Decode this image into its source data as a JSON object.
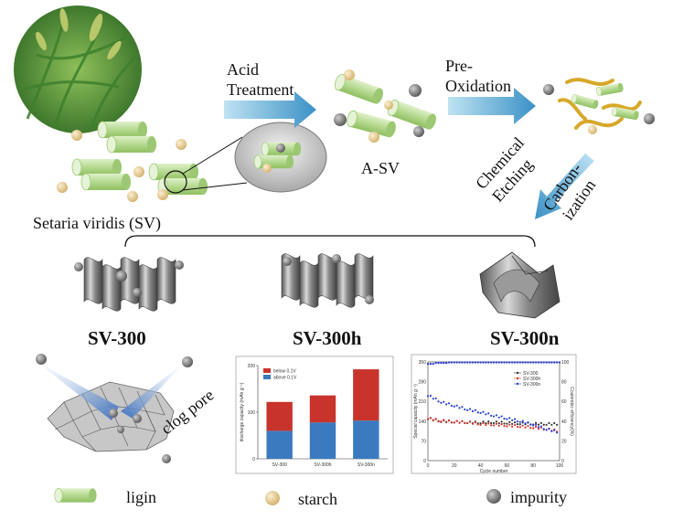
{
  "labels": {
    "acid_treatment_1": "Acid",
    "acid_treatment_2": "Treatment",
    "pre_oxidation_1": "Pre-",
    "pre_oxidation_2": "Oxidation",
    "a_sv": "A-SV",
    "chemical": "Chemical",
    "etching": "Etching",
    "carbon": "Carbon-",
    "ization": "ization",
    "setaria": "Setaria viridis (SV)",
    "sv300": "SV-300",
    "sv300h": "SV-300h",
    "sv300n": "SV-300n",
    "clog_pore": "clog pore"
  },
  "legend": {
    "ligin": "ligin",
    "starch": "starch",
    "impurity": "impurity"
  },
  "colors": {
    "ligin": "#b5d98f",
    "starch": "#e8cf95",
    "impurity": "#7a7a7a",
    "arrow": "#5aaed6",
    "bar_below": "#c8342b",
    "bar_above": "#3a7abf"
  },
  "chart_data": [
    {
      "type": "bar",
      "stacked": true,
      "categories": [
        "SV-300",
        "SV-300h",
        "SV-300n"
      ],
      "series": [
        {
          "name": "above 0.1V",
          "values": [
            60,
            78,
            82
          ]
        },
        {
          "name": "below 0.1V",
          "values": [
            62,
            58,
            110
          ]
        }
      ],
      "ylabel": "discharge capacity (mAh g⁻¹)",
      "ylim": [
        0,
        200
      ],
      "yticks": [
        "0",
        "100",
        "200"
      ],
      "legend_position": "top-left"
    },
    {
      "type": "scatter",
      "xlabel": "Cycle number",
      "ylabel": "Special capacity (mAh g⁻¹)",
      "y2label": "Coulombic efficiency(%)",
      "xlim": [
        0,
        100
      ],
      "ylim": [
        0,
        350
      ],
      "y2lim": [
        0,
        100
      ],
      "xticks": [
        "0",
        "20",
        "40",
        "60",
        "80",
        "100"
      ],
      "yticks": [
        "0",
        "70",
        "140",
        "210",
        "280",
        "350"
      ],
      "y2ticks": [
        "0",
        "20",
        "40",
        "60",
        "80",
        "100"
      ],
      "legend": [
        "SV-300",
        "SV-300h",
        "SV-300n"
      ],
      "legend_position": "top-right",
      "series": [
        {
          "name": "SV-300",
          "color": "#333333",
          "x": [
            0,
            10,
            20,
            30,
            40,
            50,
            60,
            70,
            80,
            90,
            100
          ],
          "y": [
            150,
            140,
            138,
            136,
            135,
            136,
            134,
            132,
            131,
            130,
            130
          ]
        },
        {
          "name": "SV-300h",
          "color": "#d0342c",
          "x": [
            0,
            10,
            20,
            30,
            40,
            50,
            60,
            70,
            80,
            90,
            100
          ],
          "y": [
            150,
            142,
            138,
            136,
            130,
            128,
            125,
            122,
            118,
            112,
            104
          ]
        },
        {
          "name": "SV-300n",
          "color": "#2a3fd0",
          "x": [
            0,
            10,
            20,
            30,
            40,
            50,
            60,
            70,
            80,
            90,
            100
          ],
          "y": [
            232,
            208,
            195,
            182,
            172,
            160,
            150,
            140,
            128,
            112,
            100
          ]
        }
      ],
      "efficiency_y": [
        98,
        99,
        99.5,
        99.5,
        99.5,
        99.5,
        99.5,
        99.5,
        99.5,
        99.5,
        99.5
      ]
    }
  ]
}
